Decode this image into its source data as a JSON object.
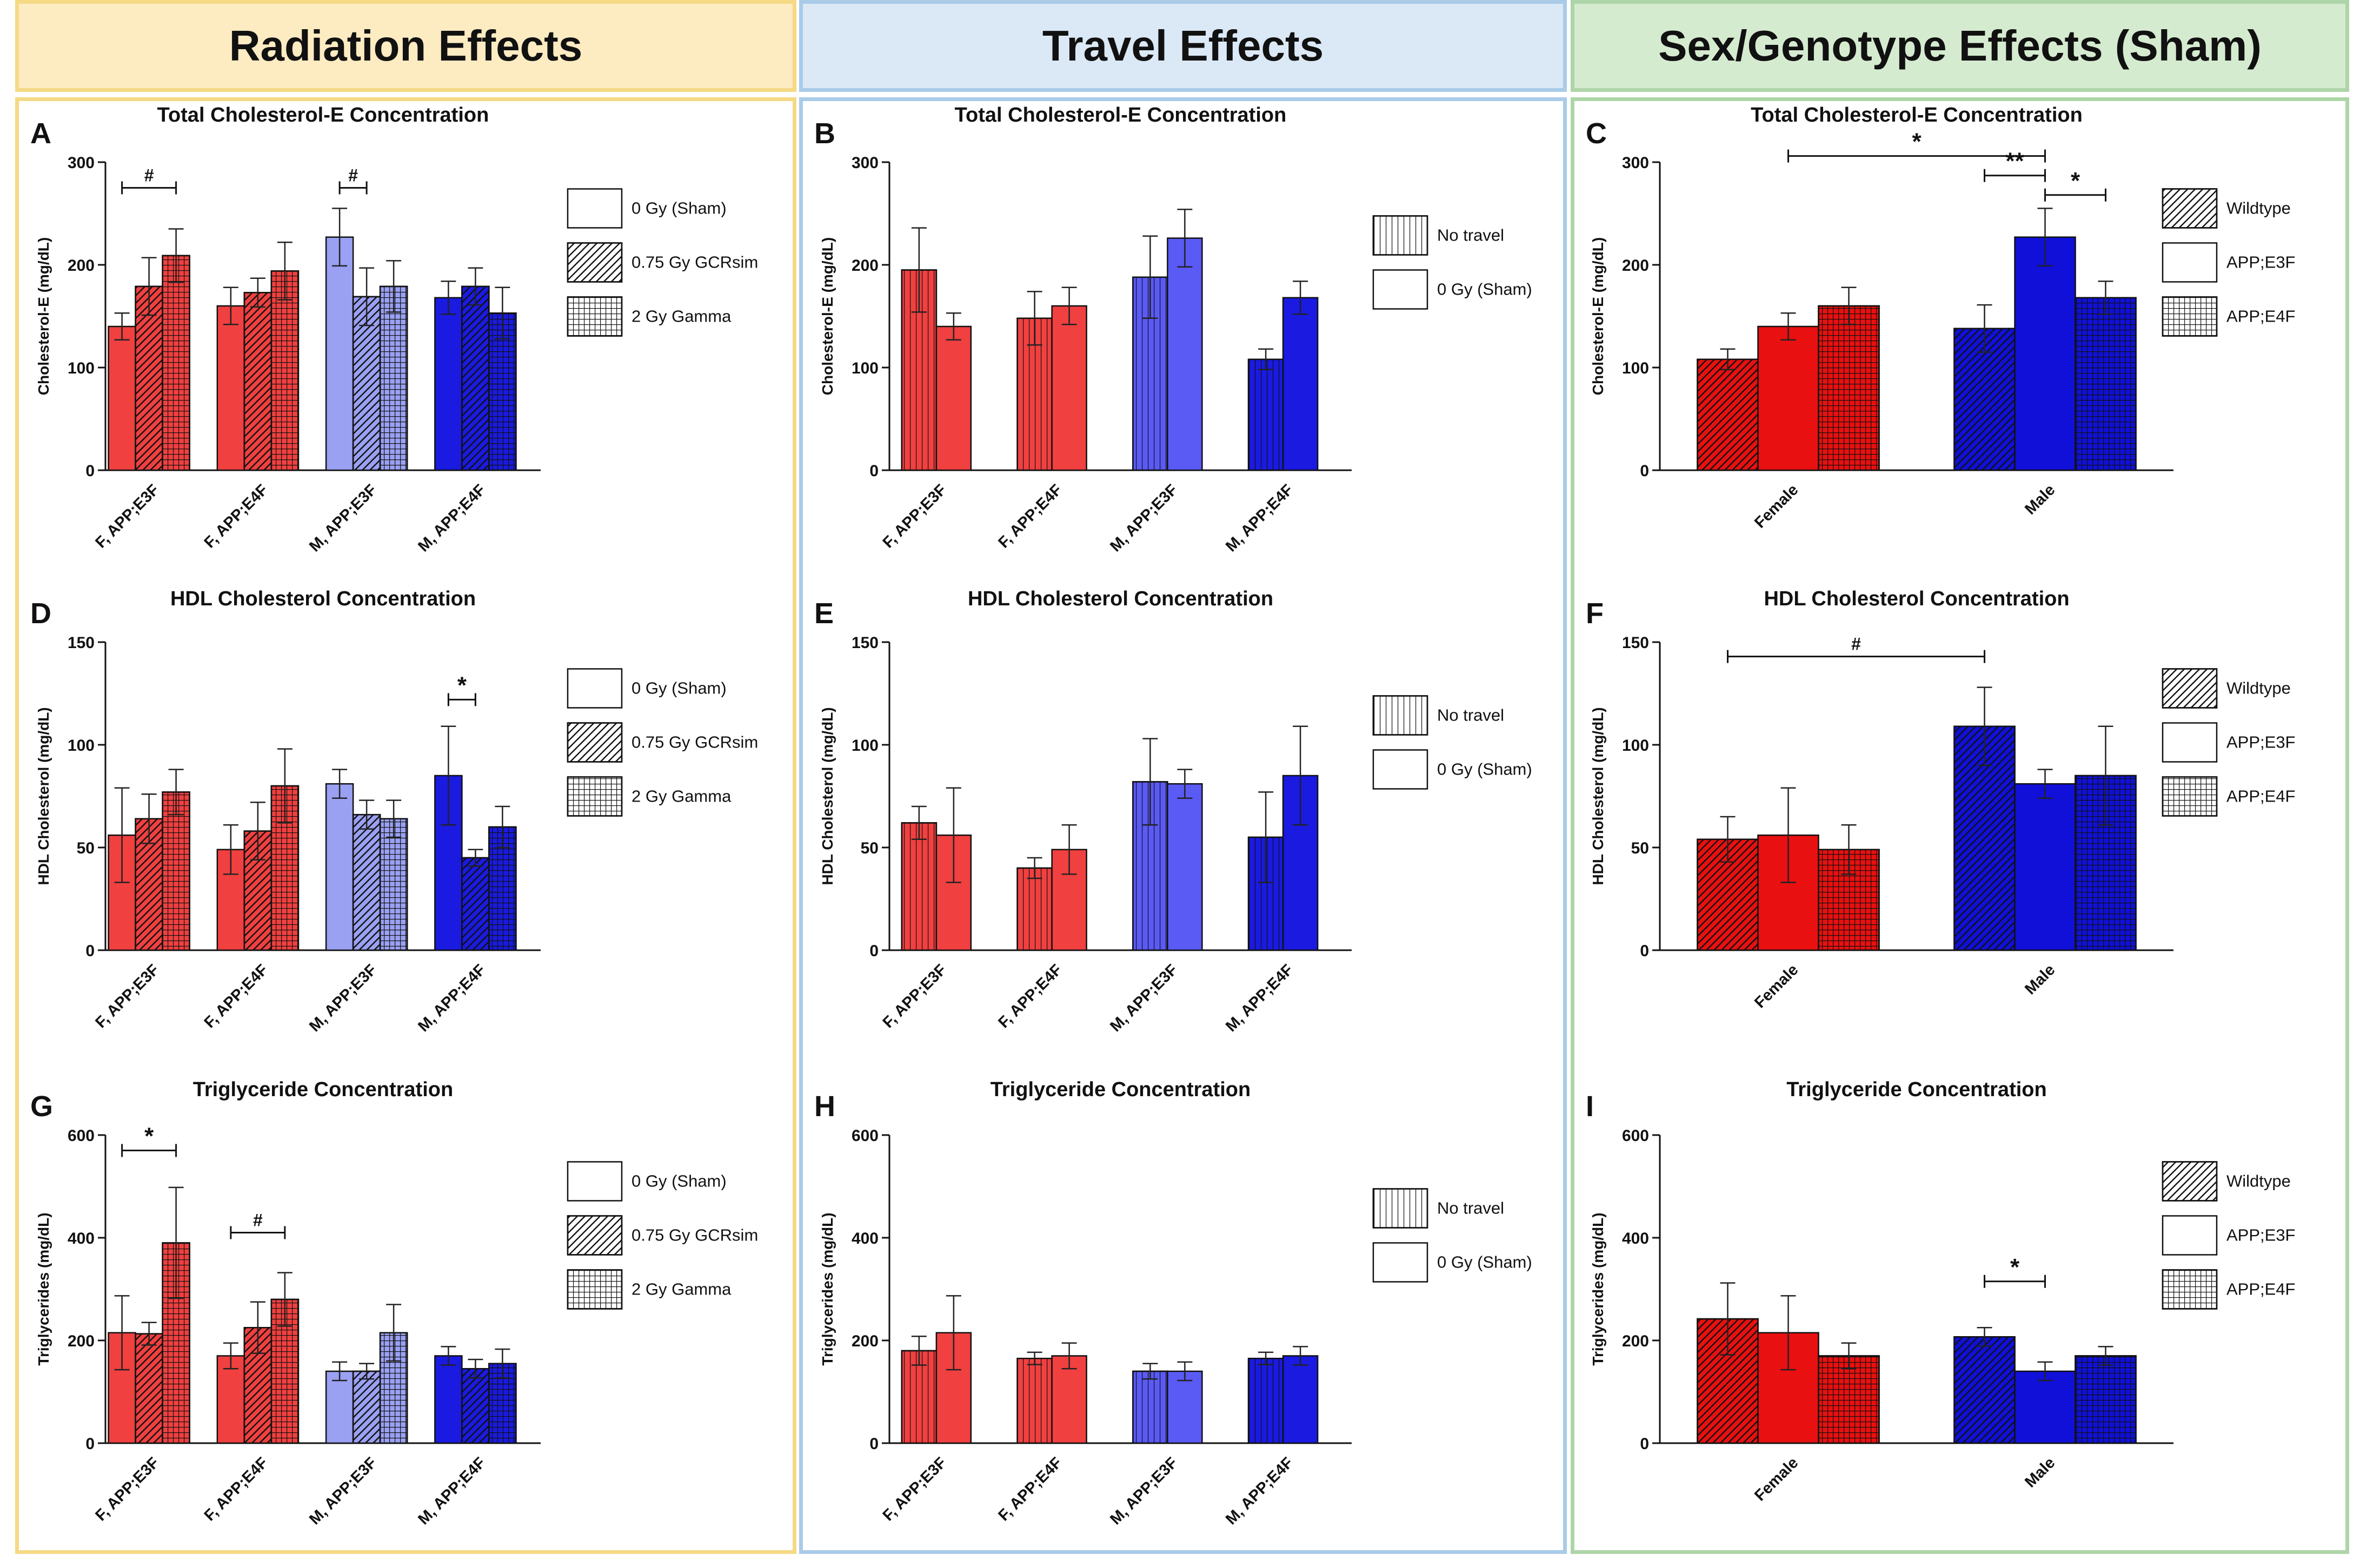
{
  "figure": {
    "columns": [
      {
        "title": "Radiation Effects",
        "header_bg": "#fdebc2",
        "border": "#f5d985"
      },
      {
        "title": "Travel Effects",
        "header_bg": "#dbe8f5",
        "border": "#a9cbe8"
      },
      {
        "title": "Sex/Genotype Effects (Sham)",
        "header_bg": "#d5ebd0",
        "border": "#aed5a8"
      }
    ]
  },
  "legends": {
    "radiation": [
      {
        "label": "0 Gy (Sham)",
        "pattern": "none"
      },
      {
        "label": "0.75 Gy GCRsim",
        "pattern": "diag"
      },
      {
        "label": "2 Gy Gamma",
        "pattern": "grid"
      }
    ],
    "travel": [
      {
        "label": "No travel",
        "pattern": "vert"
      },
      {
        "label": "0 Gy (Sham)",
        "pattern": "none"
      }
    ],
    "genotype": [
      {
        "label": "Wildtype",
        "pattern": "diag"
      },
      {
        "label": "APP;E3F",
        "pattern": "none"
      },
      {
        "label": "APP;E4F",
        "pattern": "grid"
      }
    ]
  },
  "chart_data": [
    {
      "panel": "A",
      "type": "bar",
      "title": "Total Cholesterol-E Concentration",
      "ylabel": "Cholesterol-E (mg/dL)",
      "ylim": [
        0,
        300
      ],
      "yticks": [
        0,
        100,
        200,
        300
      ],
      "legend": "radiation",
      "categories": [
        "F, APP;E3F",
        "F, APP;E4F",
        "M, APP;E3F",
        "M, APP;E4F"
      ],
      "group_colors": [
        "#f04040",
        "#f04040",
        "#9aa0f2",
        "#1a1ae0"
      ],
      "series": [
        {
          "name": "0 Gy (Sham)",
          "pattern": "none",
          "values": [
            140,
            160,
            227,
            168
          ],
          "errors": [
            13,
            18,
            28,
            16
          ]
        },
        {
          "name": "0.75 Gy GCRsim",
          "pattern": "diag",
          "values": [
            179,
            173,
            169,
            179
          ],
          "errors": [
            28,
            14,
            28,
            18
          ]
        },
        {
          "name": "2 Gy Gamma",
          "pattern": "grid",
          "values": [
            209,
            194,
            179,
            153
          ],
          "errors": [
            26,
            28,
            25,
            25
          ]
        }
      ],
      "annotations": [
        {
          "label": "#",
          "from": [
            0,
            0
          ],
          "to": [
            0,
            2
          ],
          "y": 275
        },
        {
          "label": "#",
          "from": [
            2,
            0
          ],
          "to": [
            2,
            1
          ],
          "y": 275
        }
      ]
    },
    {
      "panel": "B",
      "type": "bar",
      "title": "Total Cholesterol-E Concentration",
      "ylabel": "Cholesterol-E (mg/dL)",
      "ylim": [
        0,
        300
      ],
      "yticks": [
        0,
        100,
        200,
        300
      ],
      "legend": "travel",
      "categories": [
        "F, APP;E3F",
        "F, APP;E4F",
        "M, APP;E3F",
        "M, APP;E4F"
      ],
      "group_colors": [
        "#f04040",
        "#f04040",
        "#5a5af5",
        "#1a1ae0"
      ],
      "series": [
        {
          "name": "No travel",
          "pattern": "vert",
          "values": [
            195,
            148,
            188,
            108
          ],
          "errors": [
            41,
            26,
            40,
            10
          ]
        },
        {
          "name": "0 Gy (Sham)",
          "pattern": "none",
          "values": [
            140,
            160,
            226,
            168
          ],
          "errors": [
            13,
            18,
            28,
            16
          ]
        }
      ],
      "annotations": []
    },
    {
      "panel": "C",
      "type": "bar",
      "title": "Total Cholesterol-E Concentration",
      "ylabel": "Cholesterol-E (mg/dL)",
      "ylim": [
        0,
        300
      ],
      "yticks": [
        0,
        100,
        200,
        300
      ],
      "legend": "genotype",
      "categories": [
        "Female",
        "Male"
      ],
      "group_colors": [
        "#e81010",
        "#1010d8"
      ],
      "series": [
        {
          "name": "Wildtype",
          "pattern": "diag",
          "values": [
            108,
            138
          ],
          "errors": [
            10,
            23
          ]
        },
        {
          "name": "APP;E3F",
          "pattern": "none",
          "values": [
            140,
            227
          ],
          "errors": [
            13,
            28
          ]
        },
        {
          "name": "APP;E4F",
          "pattern": "grid",
          "values": [
            160,
            168
          ],
          "errors": [
            18,
            16
          ]
        }
      ],
      "annotations": [
        {
          "label": "*",
          "from": [
            0,
            1
          ],
          "to": [
            1,
            1
          ],
          "y": 306
        },
        {
          "label": "**",
          "from": [
            1,
            0
          ],
          "to": [
            1,
            1
          ],
          "y": 287
        },
        {
          "label": "*",
          "from": [
            1,
            1
          ],
          "to": [
            1,
            2
          ],
          "y": 268
        }
      ]
    },
    {
      "panel": "D",
      "type": "bar",
      "title": "HDL Cholesterol Concentration",
      "ylabel": "HDL Cholesterol (mg/dL)",
      "ylim": [
        0,
        150
      ],
      "yticks": [
        0,
        50,
        100,
        150
      ],
      "legend": "radiation",
      "categories": [
        "F, APP;E3F",
        "F, APP;E4F",
        "M, APP;E3F",
        "M, APP;E4F"
      ],
      "group_colors": [
        "#f04040",
        "#f04040",
        "#9aa0f2",
        "#1a1ae0"
      ],
      "series": [
        {
          "name": "0 Gy (Sham)",
          "pattern": "none",
          "values": [
            56,
            49,
            81,
            85
          ],
          "errors": [
            23,
            12,
            7,
            24
          ]
        },
        {
          "name": "0.75 Gy GCRsim",
          "pattern": "diag",
          "values": [
            64,
            58,
            66,
            45
          ],
          "errors": [
            12,
            14,
            7,
            4
          ]
        },
        {
          "name": "2 Gy Gamma",
          "pattern": "grid",
          "values": [
            77,
            80,
            64,
            60
          ],
          "errors": [
            11,
            18,
            9,
            10
          ]
        }
      ],
      "annotations": [
        {
          "label": "*",
          "from": [
            3,
            0
          ],
          "to": [
            3,
            1
          ],
          "y": 122
        }
      ]
    },
    {
      "panel": "E",
      "type": "bar",
      "title": "HDL Cholesterol Concentration",
      "ylabel": "HDL  Cholesterol (mg/dL)",
      "ylim": [
        0,
        150
      ],
      "yticks": [
        0,
        50,
        100,
        150
      ],
      "legend": "travel",
      "categories": [
        "F, APP;E3F",
        "F, APP;E4F",
        "M, APP;E3F",
        "M, APP;E4F"
      ],
      "group_colors": [
        "#f04040",
        "#f04040",
        "#5a5af5",
        "#1a1ae0"
      ],
      "series": [
        {
          "name": "No travel",
          "pattern": "vert",
          "values": [
            62,
            40,
            82,
            55
          ],
          "errors": [
            8,
            5,
            21,
            22
          ]
        },
        {
          "name": "0 Gy (Sham)",
          "pattern": "none",
          "values": [
            56,
            49,
            81,
            85
          ],
          "errors": [
            23,
            12,
            7,
            24
          ]
        }
      ],
      "annotations": []
    },
    {
      "panel": "F",
      "type": "bar",
      "title": "HDL Cholesterol Concentration",
      "ylabel": "HDL Cholesterol (mg/dL)",
      "ylim": [
        0,
        150
      ],
      "yticks": [
        0,
        50,
        100,
        150
      ],
      "legend": "genotype",
      "categories": [
        "Female",
        "Male"
      ],
      "group_colors": [
        "#e81010",
        "#1010d8"
      ],
      "series": [
        {
          "name": "Wildtype",
          "pattern": "diag",
          "values": [
            54,
            109
          ],
          "errors": [
            11,
            19
          ]
        },
        {
          "name": "APP;E3F",
          "pattern": "none",
          "values": [
            56,
            81
          ],
          "errors": [
            23,
            7
          ]
        },
        {
          "name": "APP;E4F",
          "pattern": "grid",
          "values": [
            49,
            85
          ],
          "errors": [
            12,
            24
          ]
        }
      ],
      "annotations": [
        {
          "label": "#",
          "from": [
            0,
            0
          ],
          "to": [
            1,
            0
          ],
          "y": 143
        }
      ]
    },
    {
      "panel": "G",
      "type": "bar",
      "title": "Triglyceride Concentration",
      "ylabel": "Triglycerides (mg/dL)",
      "ylim": [
        0,
        600
      ],
      "yticks": [
        0,
        200,
        400,
        600
      ],
      "legend": "radiation",
      "categories": [
        "F, APP;E3F",
        "F, APP;E4F",
        "M, APP;E3F",
        "M, APP;E4F"
      ],
      "group_colors": [
        "#f04040",
        "#f04040",
        "#9aa0f2",
        "#1a1ae0"
      ],
      "series": [
        {
          "name": "0 Gy (Sham)",
          "pattern": "none",
          "values": [
            215,
            170,
            140,
            170
          ],
          "errors": [
            72,
            25,
            18,
            18
          ]
        },
        {
          "name": "0.75 Gy GCRsim",
          "pattern": "diag",
          "values": [
            213,
            225,
            140,
            145
          ],
          "errors": [
            22,
            50,
            15,
            18
          ]
        },
        {
          "name": "2 Gy Gamma",
          "pattern": "grid",
          "values": [
            390,
            280,
            215,
            155
          ],
          "errors": [
            108,
            52,
            55,
            28
          ]
        }
      ],
      "annotations": [
        {
          "label": "*",
          "from": [
            0,
            0
          ],
          "to": [
            0,
            2
          ],
          "y": 570
        },
        {
          "label": "#",
          "from": [
            1,
            0
          ],
          "to": [
            1,
            2
          ],
          "y": 410
        }
      ]
    },
    {
      "panel": "H",
      "type": "bar",
      "title": "Triglyceride Concentration",
      "ylabel": "Triglycerides (mg/dL)",
      "ylim": [
        0,
        600
      ],
      "yticks": [
        0,
        200,
        400,
        600
      ],
      "legend": "travel",
      "categories": [
        "F, APP;E3F",
        "F, APP;E4F",
        "M, APP;E3F",
        "M, APP;E4F"
      ],
      "group_colors": [
        "#f04040",
        "#f04040",
        "#5a5af5",
        "#1a1ae0"
      ],
      "series": [
        {
          "name": "No travel",
          "pattern": "vert",
          "values": [
            180,
            165,
            140,
            165
          ],
          "errors": [
            28,
            12,
            15,
            12
          ]
        },
        {
          "name": "0 Gy (Sham)",
          "pattern": "none",
          "values": [
            215,
            170,
            140,
            170
          ],
          "errors": [
            72,
            25,
            18,
            18
          ]
        }
      ],
      "annotations": []
    },
    {
      "panel": "I",
      "type": "bar",
      "title": "Triglyceride Concentration",
      "ylabel": "Triglycerides (mg/dL)",
      "ylim": [
        0,
        600
      ],
      "yticks": [
        0,
        200,
        400,
        600
      ],
      "legend": "genotype",
      "categories": [
        "Female",
        "Male"
      ],
      "group_colors": [
        "#e81010",
        "#1010d8"
      ],
      "series": [
        {
          "name": "Wildtype",
          "pattern": "diag",
          "values": [
            242,
            207
          ],
          "errors": [
            70,
            18
          ]
        },
        {
          "name": "APP;E3F",
          "pattern": "none",
          "values": [
            215,
            140
          ],
          "errors": [
            72,
            18
          ]
        },
        {
          "name": "APP;E4F",
          "pattern": "grid",
          "values": [
            170,
            170
          ],
          "errors": [
            25,
            18
          ]
        }
      ],
      "annotations": [
        {
          "label": "*",
          "from": [
            1,
            0
          ],
          "to": [
            1,
            1
          ],
          "y": 315
        }
      ]
    }
  ]
}
